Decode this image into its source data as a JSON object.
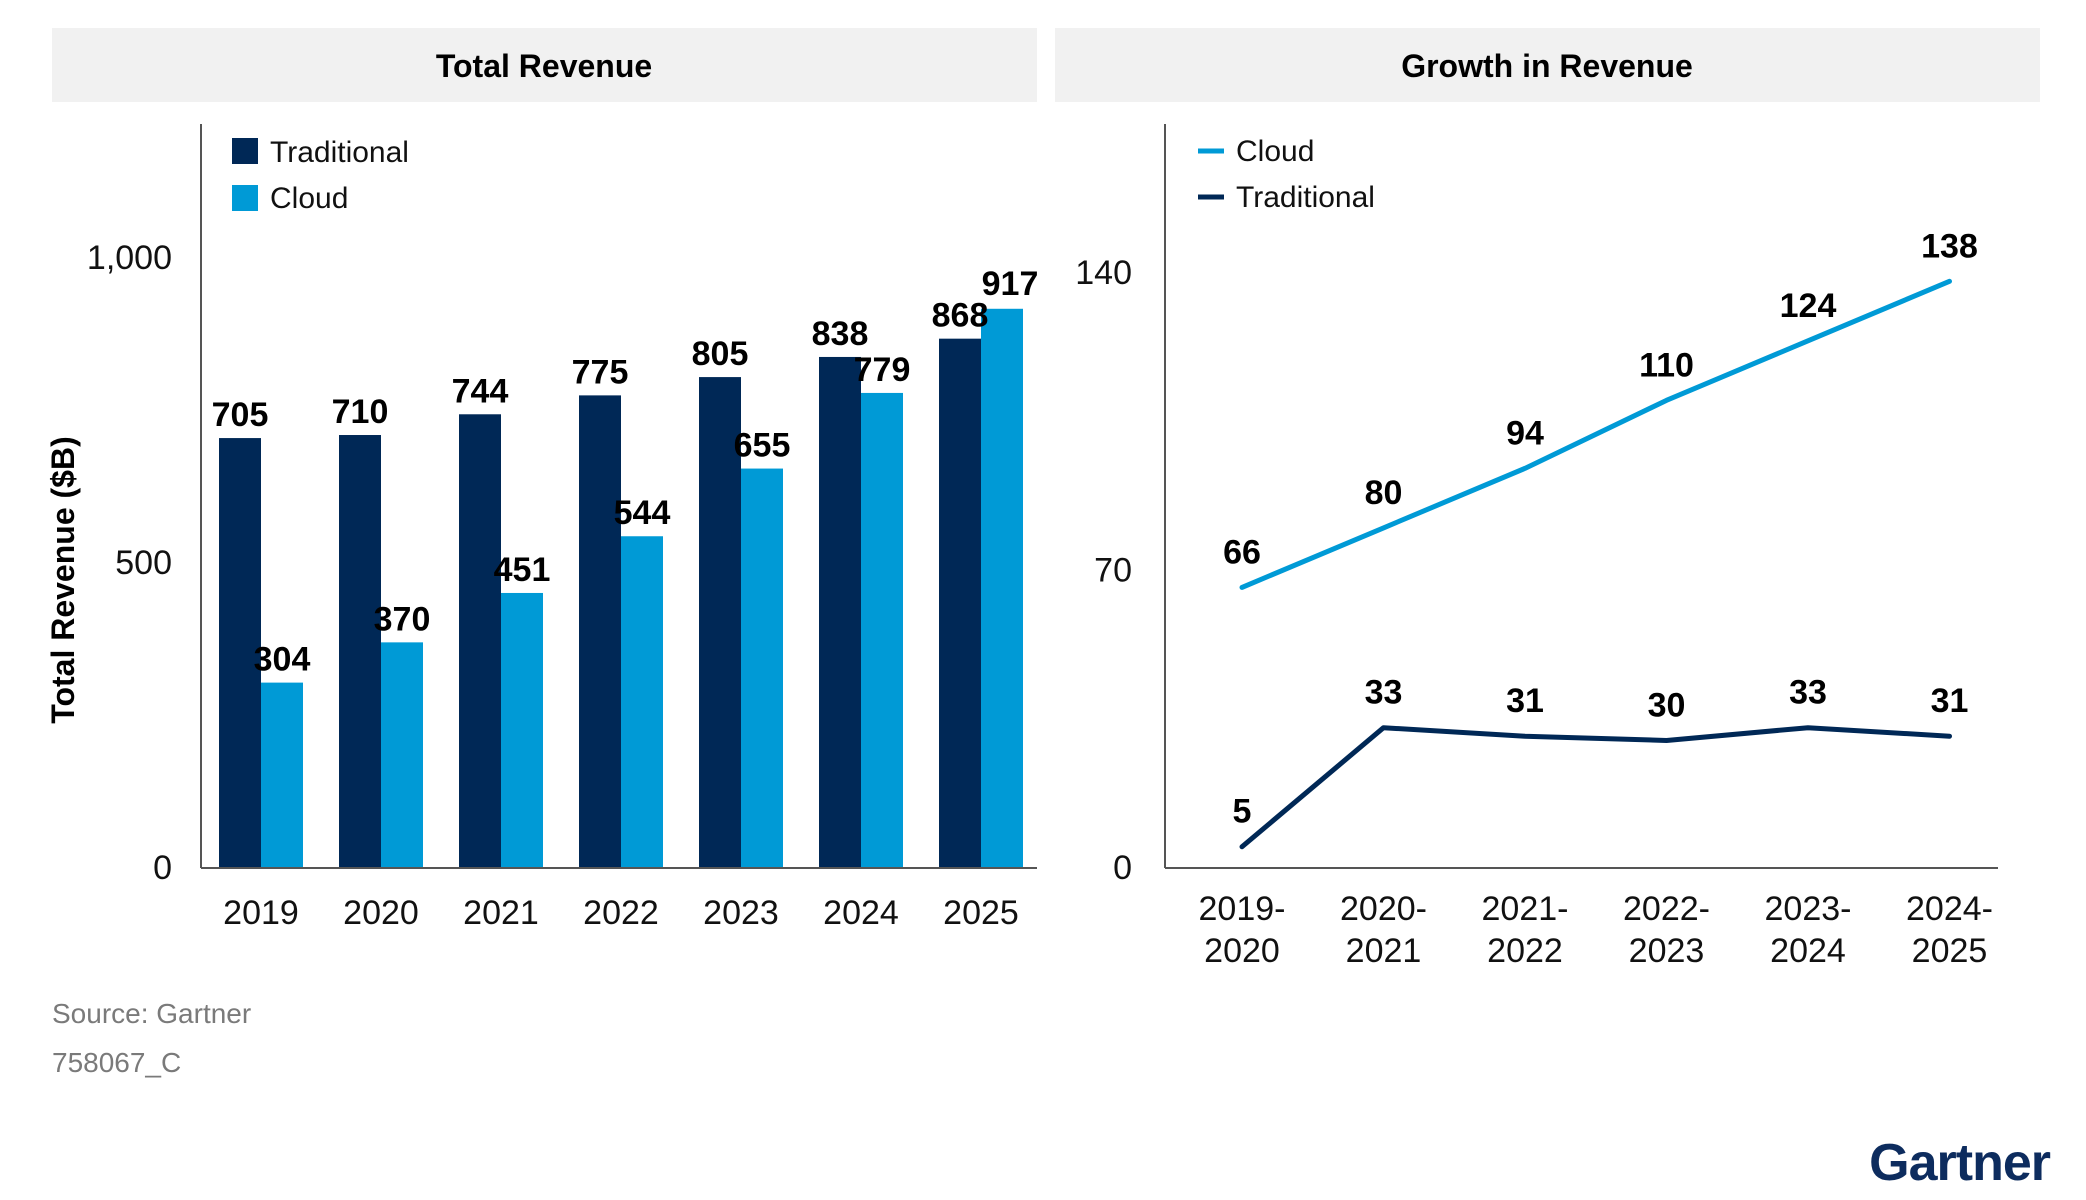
{
  "colors": {
    "traditional": "#002856",
    "cloud": "#009ad6",
    "panel_header_bg": "#f1f1f1",
    "axis": "#555555",
    "logo": "#0d2c5e"
  },
  "chart_data": [
    {
      "type": "bar",
      "title": "Total Revenue",
      "ylabel": "Total Revenue ($B)",
      "categories": [
        "2019",
        "2020",
        "2021",
        "2022",
        "2023",
        "2024",
        "2025"
      ],
      "series": [
        {
          "name": "Traditional",
          "values": [
            705,
            710,
            744,
            775,
            805,
            838,
            868
          ]
        },
        {
          "name": "Cloud",
          "values": [
            304,
            370,
            451,
            544,
            655,
            779,
            917
          ]
        }
      ],
      "yticks": [
        0,
        500,
        1000
      ],
      "ytick_labels": [
        "0",
        "500",
        "1,000"
      ],
      "ylim": [
        0,
        1220
      ],
      "legend": "top-left",
      "grid": false
    },
    {
      "type": "line",
      "title": "Growth in Revenue",
      "categories": [
        "2019-2020",
        "2020-2021",
        "2021-2022",
        "2022-2023",
        "2023-2024",
        "2024-2025"
      ],
      "category_lines": [
        [
          "2019-",
          "2020"
        ],
        [
          "2020-",
          "2021"
        ],
        [
          "2021-",
          "2022"
        ],
        [
          "2022-",
          "2023"
        ],
        [
          "2023-",
          "2024"
        ],
        [
          "2024-",
          "2025"
        ]
      ],
      "series": [
        {
          "name": "Cloud",
          "values": [
            66,
            80,
            94,
            110,
            124,
            138
          ]
        },
        {
          "name": "Traditional",
          "values": [
            5,
            33,
            31,
            30,
            33,
            31
          ]
        }
      ],
      "yticks": [
        0,
        70,
        140
      ],
      "ytick_labels": [
        "0",
        "70",
        "140"
      ],
      "ylim": [
        0,
        175
      ],
      "legend": "top-left",
      "grid": false
    }
  ],
  "footer": {
    "source": "Source: Gartner",
    "doc_id": "758067_C"
  },
  "brand": {
    "logo_text": "Gartner"
  }
}
